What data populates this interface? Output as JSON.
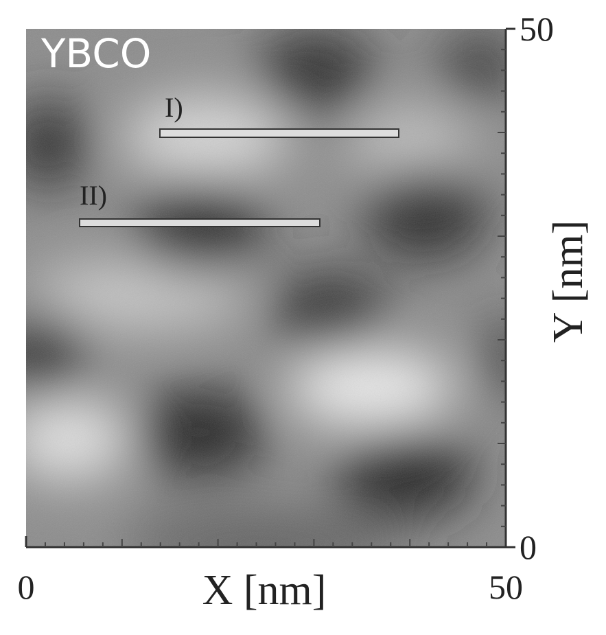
{
  "chart_data": {
    "type": "image",
    "annotations": [
      "YBCO",
      "I)",
      "II)"
    ],
    "xlabel": "X [nm]",
    "ylabel": "Y [nm]",
    "xlim": [
      0,
      50
    ],
    "ylim": [
      0,
      50
    ],
    "xticks": [
      0,
      50
    ],
    "yticks": [
      0,
      50
    ]
  }
}
